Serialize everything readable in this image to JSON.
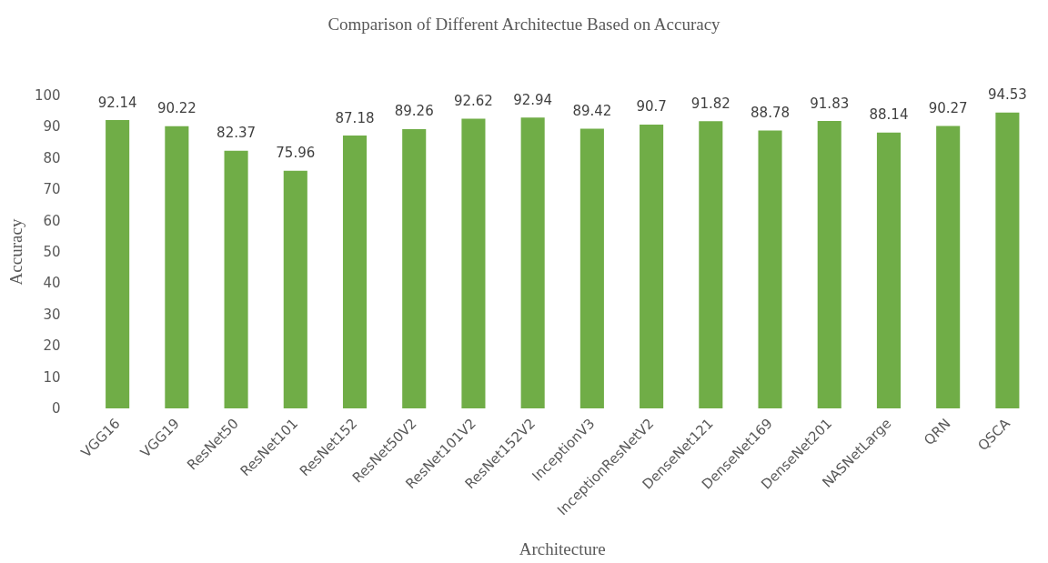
{
  "chart_data": {
    "type": "bar",
    "title": "Comparison of Different Architectue Based on Accuracy",
    "xlabel": "Architecture",
    "ylabel": "Accuracy",
    "categories": [
      "VGG16",
      "VGG19",
      "ResNet50",
      "ResNet101",
      "ResNet152",
      "ResNet50V2",
      "ResNet101V2",
      "ResNet152V2",
      "InceptionV3",
      "InceptionResNetV2",
      "DenseNet121",
      "DenseNet169",
      "DenseNet201",
      "NASNetLarge",
      "QRN",
      "QSCA"
    ],
    "values": [
      92.14,
      90.22,
      82.37,
      75.96,
      87.18,
      89.26,
      92.62,
      92.94,
      89.42,
      90.7,
      91.82,
      88.78,
      91.83,
      88.14,
      90.27,
      94.53
    ],
    "color": "#70ad47",
    "ylim": [
      0,
      100
    ],
    "yticks": [
      0,
      10,
      20,
      30,
      40,
      50,
      60,
      70,
      80,
      90,
      100
    ],
    "grid": false,
    "data_labels": true
  }
}
